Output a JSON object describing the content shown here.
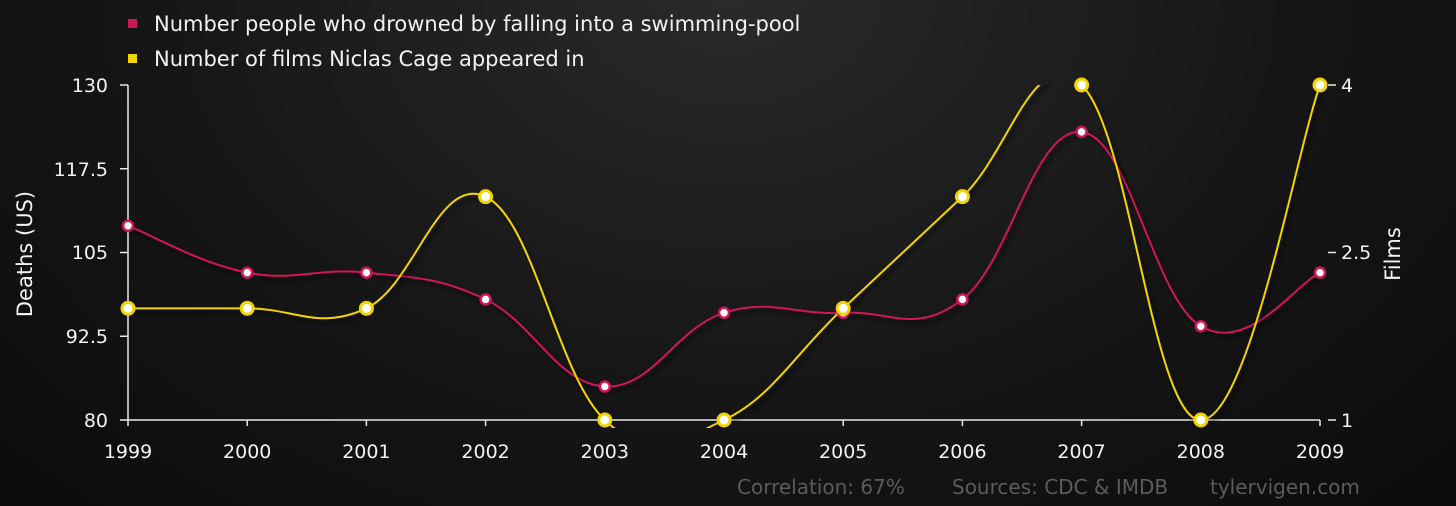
{
  "chart_data": {
    "type": "line",
    "x": [
      "1999",
      "2000",
      "2001",
      "2002",
      "2003",
      "2004",
      "2005",
      "2006",
      "2007",
      "2008",
      "2009"
    ],
    "series": [
      {
        "name": "Number people who drowned by falling into a swimming-pool",
        "axis": "left",
        "color": "#d0145a",
        "values": [
          109,
          102,
          102,
          98,
          85,
          96,
          96,
          98,
          123,
          94,
          102
        ]
      },
      {
        "name": "Number of films Niclas Cage appeared in",
        "axis": "right",
        "color": "#f2d400",
        "values": [
          2,
          2,
          2,
          3,
          1,
          1,
          2,
          3,
          4,
          1,
          4
        ]
      }
    ],
    "ylabel": "Deaths (US)",
    "ylabel_right": "Films",
    "ylim": [
      80,
      130
    ],
    "ylim_right": [
      1,
      4
    ],
    "yticks": [
      "130",
      "117.5",
      "105",
      "92.5",
      "80"
    ],
    "yticks_right": [
      "4",
      "2.5",
      "1"
    ],
    "legend_position": "top-left",
    "grid": false
  },
  "footer": {
    "correlation": "Correlation: 67%",
    "sources": "Sources: CDC & IMDB",
    "site": "tylervigen.com"
  }
}
